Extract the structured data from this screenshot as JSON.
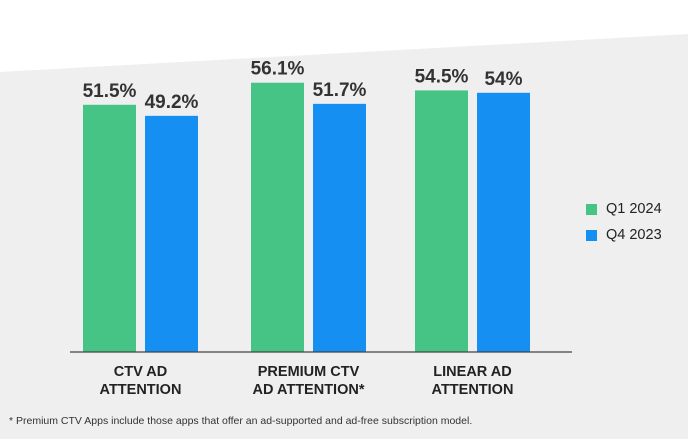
{
  "colors": {
    "q1": "#45c486",
    "q4": "#1590f2",
    "panel": "#efefef",
    "axis": "#444444"
  },
  "legend": [
    {
      "label": "Q1 2024",
      "color": "#45c486"
    },
    {
      "label": "Q4 2023",
      "color": "#1590f2"
    }
  ],
  "footnote": "* Premium CTV Apps include those apps that offer an ad-supported and ad-free subscription model.",
  "chart_data": {
    "type": "bar",
    "categories": [
      [
        "CTV AD",
        "ATTENTION"
      ],
      [
        "PREMIUM CTV",
        "AD ATTENTION*"
      ],
      [
        "LINEAR AD",
        "ATTENTION"
      ]
    ],
    "series": [
      {
        "name": "Q1 2024",
        "values": [
          51.5,
          56.1,
          54.5
        ],
        "labels": [
          "51.5%",
          "56.1%",
          "54.5%"
        ]
      },
      {
        "name": "Q4 2023",
        "values": [
          49.2,
          51.7,
          54.0
        ],
        "labels": [
          "49.2%",
          "51.7%",
          "54%"
        ]
      }
    ],
    "ylim": [
      0,
      60
    ],
    "grid": false,
    "legend_position": "right"
  }
}
